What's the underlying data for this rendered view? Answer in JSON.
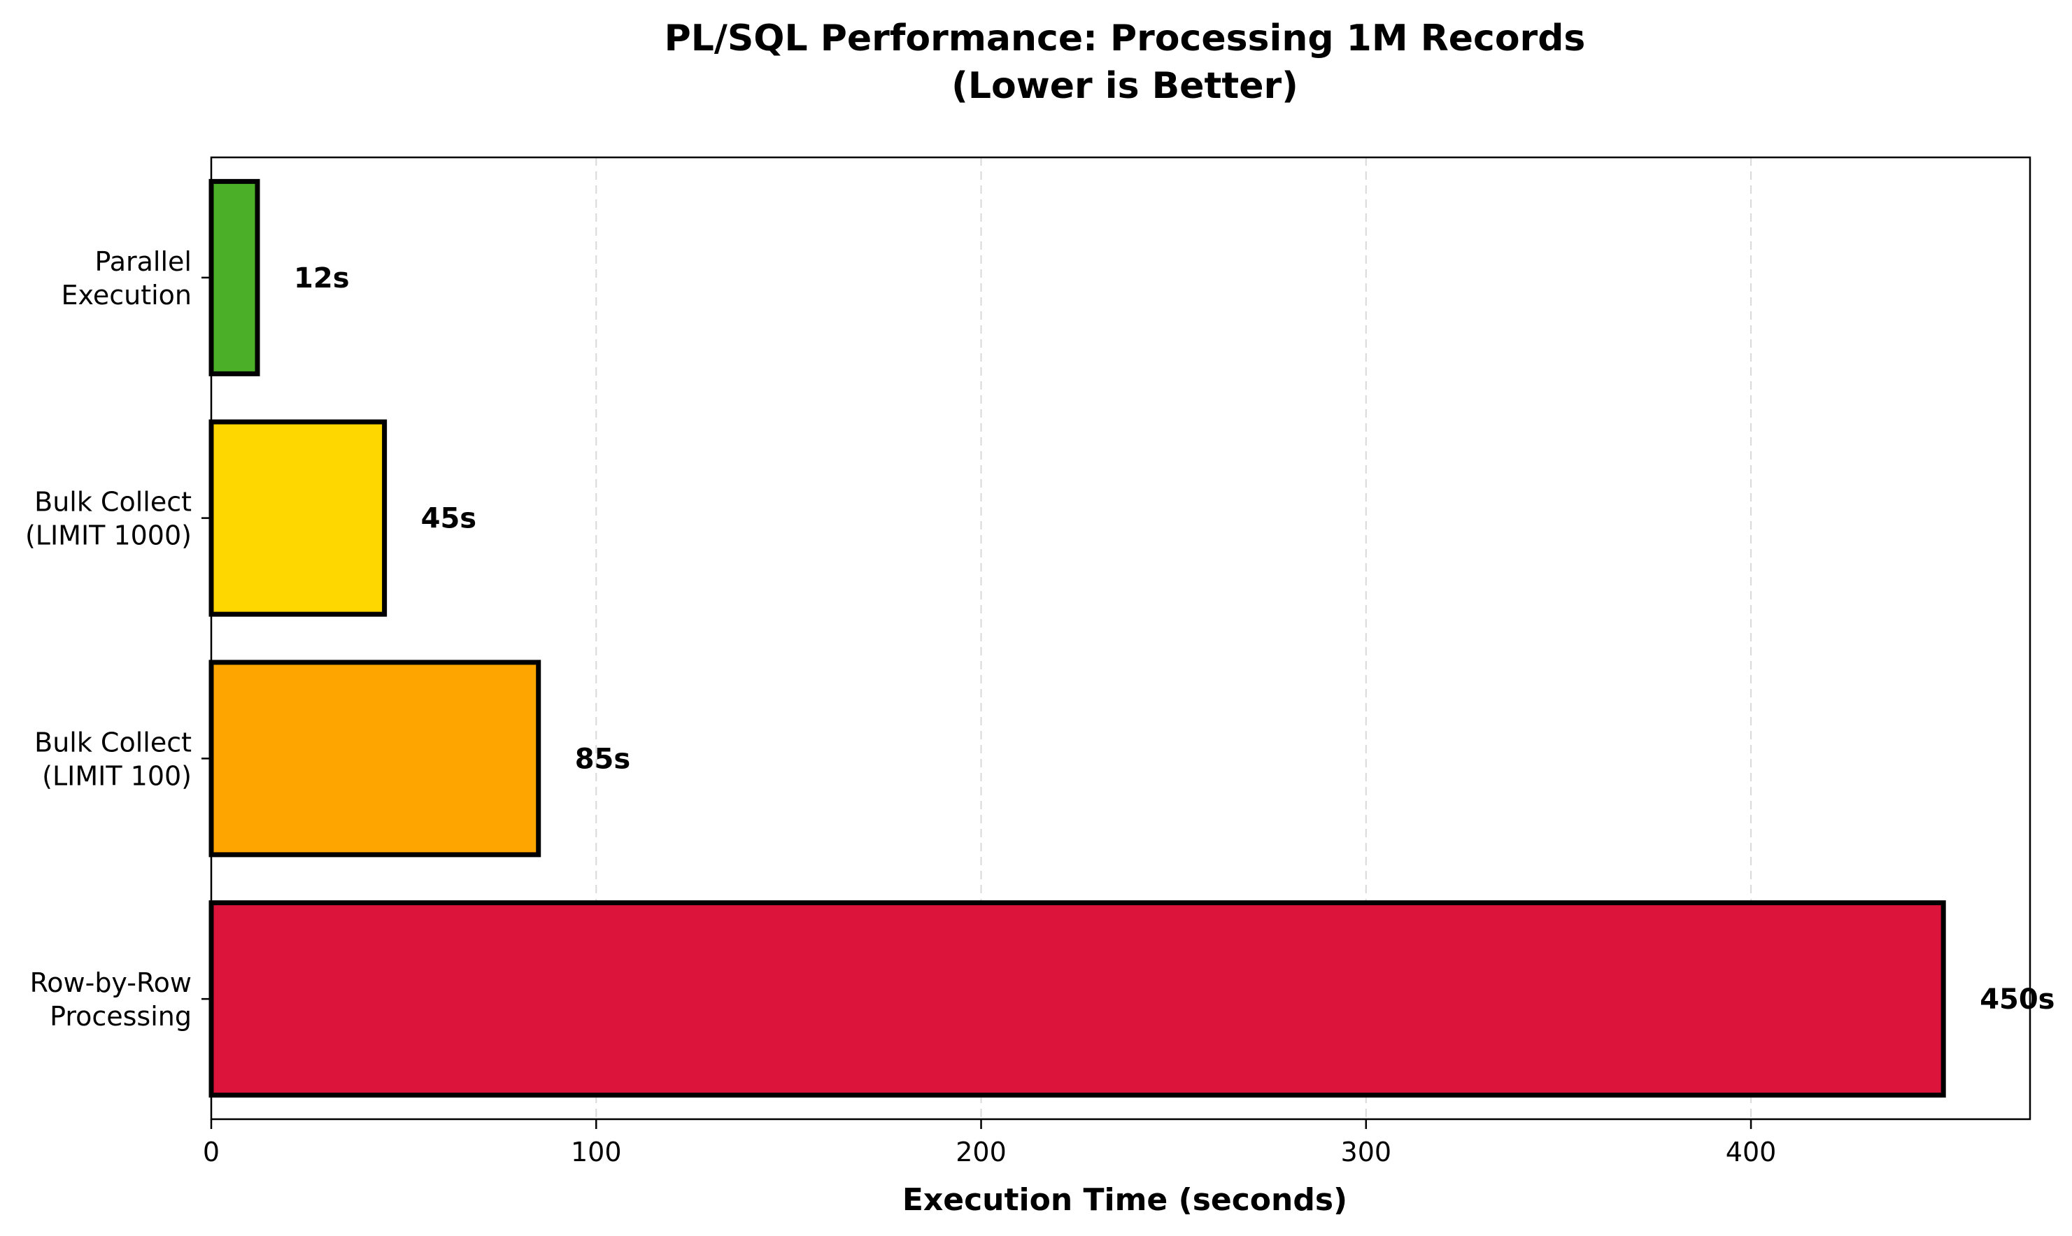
{
  "chart_data": {
    "type": "bar",
    "orientation": "horizontal",
    "title_lines": [
      "PL/SQL Performance: Processing 1M Records",
      "(Lower is Better)"
    ],
    "xlabel": "Execution Time (seconds)",
    "ylabel": "",
    "xlim": [
      0,
      472.5
    ],
    "xticks": [
      0,
      100,
      200,
      300,
      400
    ],
    "grid": "x-dashed",
    "categories": [
      {
        "lines": [
          "Row-by-Row",
          "Processing"
        ]
      },
      {
        "lines": [
          "Bulk Collect",
          "(LIMIT 100)"
        ]
      },
      {
        "lines": [
          "Bulk Collect",
          "(LIMIT 1000)"
        ]
      },
      {
        "lines": [
          "Parallel",
          "Execution"
        ]
      }
    ],
    "values": [
      450,
      85,
      45,
      12
    ],
    "value_labels": [
      "450s",
      "85s",
      "45s",
      "12s"
    ],
    "colors": [
      "#DC143C",
      "#FFA500",
      "#FFD700",
      "#4CAF28"
    ],
    "edge_color": "#000000"
  }
}
